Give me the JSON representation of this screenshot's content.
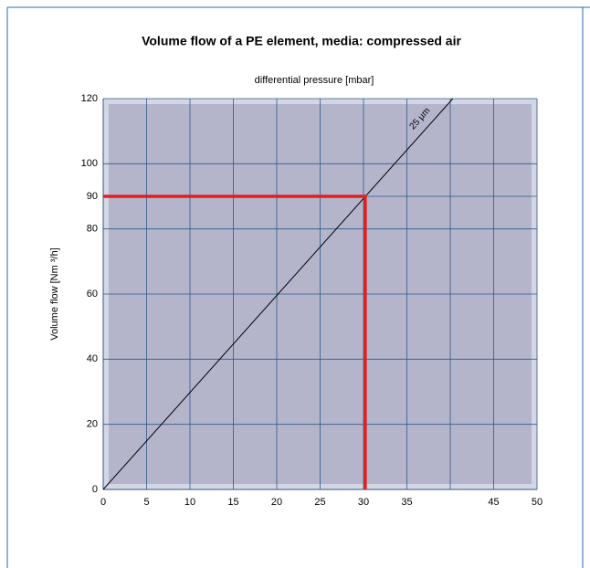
{
  "chart_data": {
    "type": "line",
    "title": "Volume flow of a PE element, media: compressed air",
    "x_label": "differential pressure [mbar]",
    "y_label": "Volume flow [Nm ³/h]",
    "xlim": [
      0,
      50
    ],
    "xticks": [
      0,
      5,
      10,
      15,
      20,
      25,
      30,
      35,
      40,
      45,
      50
    ],
    "xtick_labels_shown": [
      0,
      5,
      10,
      15,
      20,
      25,
      30,
      35,
      45,
      50
    ],
    "ylim": [
      0,
      120
    ],
    "yticks": [
      0,
      20,
      40,
      60,
      80,
      90,
      100,
      120
    ],
    "grid": true,
    "series": [
      {
        "name": "25 µm",
        "color": "#000000",
        "x": [
          0,
          40.3
        ],
        "values": [
          0,
          120
        ]
      },
      {
        "color": "#e02020",
        "x": [
          0,
          30.2,
          30.2
        ],
        "values": [
          90,
          90,
          0
        ]
      }
    ]
  }
}
